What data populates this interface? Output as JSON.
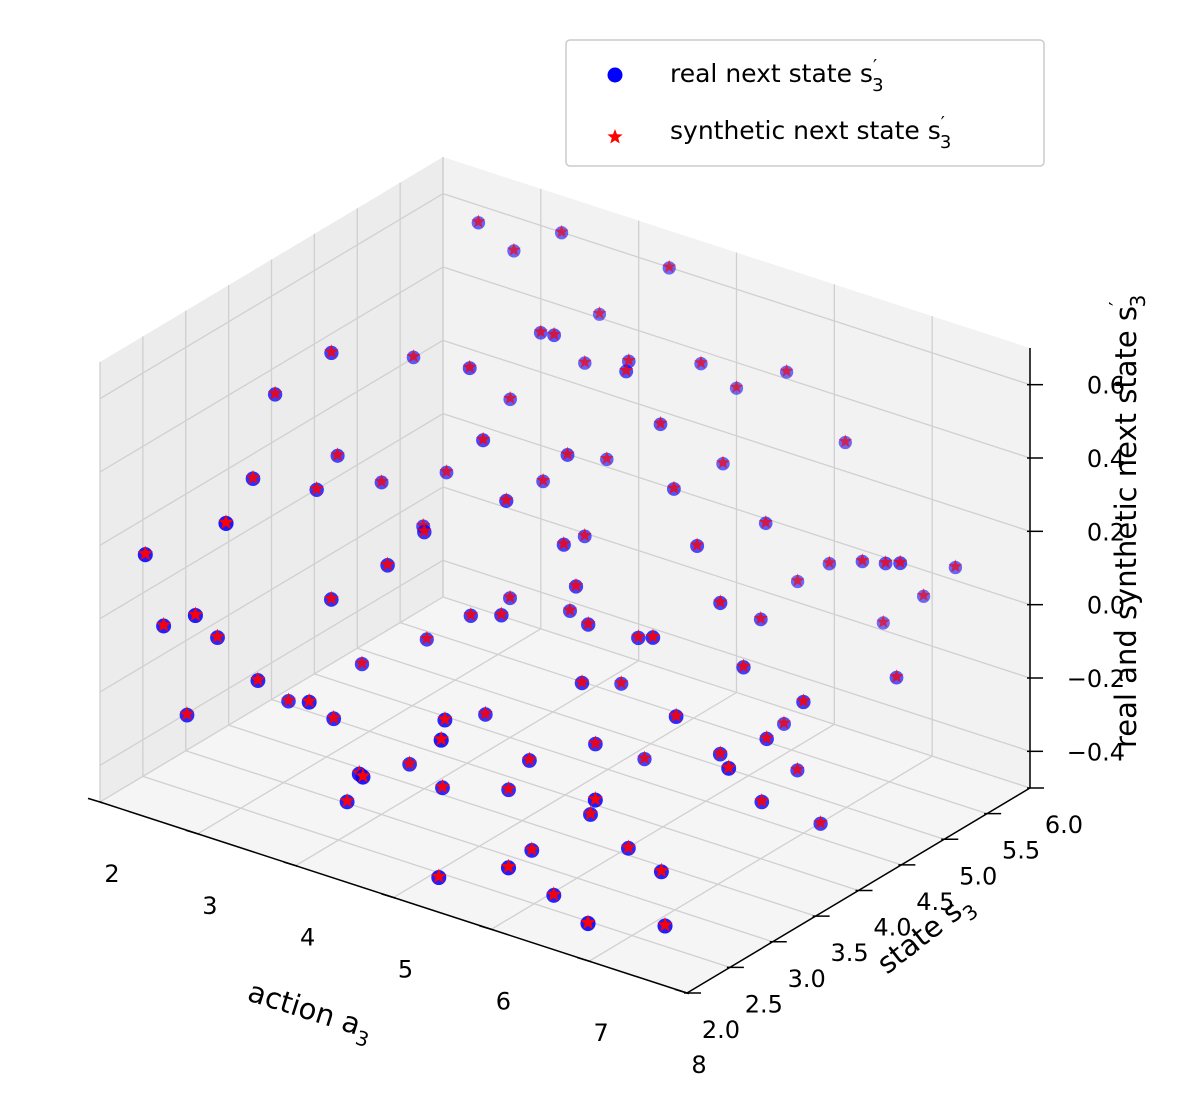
{
  "chart_data": {
    "type": "scatter",
    "projection": "3d",
    "grid": true,
    "legend_position": "top-right",
    "xlabel": "action a",
    "xlabel_sub": "3",
    "ylabel": "state s",
    "ylabel_sub": "3",
    "zlabel": "real and synthetic next state s",
    "zlabel_sup": "′",
    "zlabel_sub": "3",
    "xlim": [
      2,
      8
    ],
    "ylim": [
      2,
      6
    ],
    "zlim": [
      -0.5,
      0.7
    ],
    "x_ticks": [
      "2",
      "3",
      "4",
      "5",
      "6",
      "7",
      "8"
    ],
    "y_ticks": [
      "2.0",
      "2.5",
      "3.0",
      "3.5",
      "4.0",
      "4.5",
      "5.0",
      "5.5",
      "6.0"
    ],
    "z_ticks": [
      "−0.4",
      "−0.2",
      "0.0",
      "0.2",
      "0.4",
      "0.6"
    ],
    "series": [
      {
        "name": "real next state s",
        "name_sup": "′",
        "name_sub": "3",
        "marker": "circle",
        "color": "#0000ff"
      },
      {
        "name": "synthetic next state s",
        "name_sup": "′",
        "name_sub": "3",
        "marker": "star",
        "color": "#ff0000"
      }
    ],
    "points": [
      [
        2.3,
        2.4,
        -0.05
      ],
      [
        2.5,
        2.8,
        -0.12
      ],
      [
        2.2,
        2.3,
        0.15
      ],
      [
        3.0,
        2.7,
        -0.18
      ],
      [
        2.8,
        2.2,
        0.05
      ],
      [
        3.4,
        3.1,
        0.02
      ],
      [
        2.9,
        3.5,
        0.22
      ],
      [
        3.6,
        2.9,
        -0.26
      ],
      [
        4.0,
        2.6,
        -0.41
      ],
      [
        3.2,
        2.1,
        0.35
      ],
      [
        2.7,
        3.9,
        0.52
      ],
      [
        3.8,
        3.3,
        0.12
      ],
      [
        4.3,
        2.4,
        -0.28
      ],
      [
        4.8,
        2.8,
        -0.33
      ],
      [
        5.2,
        2.3,
        -0.47
      ],
      [
        5.6,
        2.9,
        -0.2
      ],
      [
        6.0,
        2.2,
        -0.36
      ],
      [
        6.4,
        2.7,
        -0.25
      ],
      [
        6.8,
        2.3,
        -0.12
      ],
      [
        7.3,
        2.5,
        -0.3
      ],
      [
        7.6,
        2.2,
        -0.38
      ],
      [
        7.1,
        2.9,
        0.05
      ],
      [
        6.6,
        3.2,
        0.18
      ],
      [
        6.1,
        3.6,
        0.08
      ],
      [
        5.7,
        3.4,
        -0.05
      ],
      [
        5.2,
        3.9,
        0.1
      ],
      [
        4.7,
        3.6,
        0.02
      ],
      [
        4.4,
        4.0,
        0.25
      ],
      [
        3.9,
        4.3,
        0.33
      ],
      [
        3.5,
        4.6,
        0.45
      ],
      [
        4.1,
        4.9,
        0.55
      ],
      [
        4.6,
        5.2,
        0.48
      ],
      [
        5.1,
        5.0,
        0.38
      ],
      [
        5.5,
        4.7,
        0.28
      ],
      [
        6.0,
        4.4,
        0.21
      ],
      [
        6.5,
        4.1,
        0.14
      ],
      [
        7.0,
        3.8,
        0.05
      ],
      [
        7.5,
        3.5,
        -0.06
      ],
      [
        7.8,
        3.1,
        -0.15
      ],
      [
        7.9,
        4.6,
        0.3
      ],
      [
        7.4,
        5.0,
        0.2
      ],
      [
        6.9,
        5.3,
        0.12
      ],
      [
        6.3,
        5.6,
        0.02
      ],
      [
        5.8,
        5.8,
        -0.1
      ],
      [
        5.3,
        5.5,
        0.22
      ],
      [
        4.9,
        5.7,
        0.43
      ],
      [
        4.4,
        5.9,
        0.62
      ],
      [
        3.8,
        5.6,
        0.35
      ],
      [
        3.3,
        5.3,
        0.25
      ],
      [
        3.0,
        4.9,
        0.08
      ],
      [
        2.6,
        4.6,
        0.06
      ],
      [
        2.4,
        5.2,
        0.3
      ],
      [
        2.9,
        5.8,
        0.55
      ],
      [
        3.6,
        6.0,
        0.41
      ],
      [
        4.2,
        5.4,
        0.15
      ],
      [
        4.7,
        4.4,
        -0.08
      ],
      [
        5.4,
        4.2,
        -0.19
      ],
      [
        5.9,
        3.9,
        -0.31
      ],
      [
        6.3,
        4.8,
        -0.02
      ],
      [
        6.8,
        4.5,
        -0.22
      ],
      [
        7.2,
        4.2,
        -0.27
      ],
      [
        7.7,
        3.9,
        -0.33
      ],
      [
        7.5,
        5.7,
        0.1
      ],
      [
        7.0,
        5.9,
        -0.05
      ],
      [
        6.5,
        6.0,
        -0.18
      ],
      [
        6.0,
        5.2,
        0.16
      ],
      [
        5.6,
        5.9,
        0.44
      ],
      [
        5.0,
        6.0,
        0.33
      ],
      [
        4.5,
        4.8,
        0.05
      ],
      [
        4.0,
        4.5,
        -0.12
      ],
      [
        3.5,
        4.1,
        -0.22
      ],
      [
        3.1,
        3.8,
        -0.28
      ],
      [
        2.7,
        3.4,
        -0.36
      ],
      [
        2.3,
        3.7,
        0.4
      ],
      [
        2.5,
        4.2,
        0.18
      ],
      [
        2.8,
        5.5,
        0.66
      ],
      [
        3.3,
        5.9,
        0.62
      ],
      [
        3.9,
        5.0,
        0.12
      ],
      [
        4.3,
        3.7,
        -0.03
      ],
      [
        4.8,
        3.3,
        -0.2
      ],
      [
        5.3,
        3.0,
        -0.32
      ],
      [
        5.8,
        2.7,
        -0.4
      ],
      [
        6.2,
        2.5,
        -0.46
      ],
      [
        6.7,
        2.8,
        -0.33
      ],
      [
        7.2,
        3.3,
        -0.1
      ],
      [
        7.7,
        3.7,
        0.03
      ],
      [
        6.1,
        3.1,
        -0.14
      ],
      [
        5.5,
        3.7,
        0.05
      ],
      [
        4.9,
        4.1,
        0.16
      ],
      [
        4.5,
        4.6,
        0.3
      ],
      [
        3.7,
        5.2,
        0.48
      ],
      [
        3.2,
        4.4,
        0.02
      ],
      [
        2.6,
        3.1,
        0.28
      ],
      [
        2.1,
        2.9,
        -0.38
      ],
      [
        3.7,
        2.5,
        -0.15
      ],
      [
        4.2,
        3.1,
        -0.36
      ],
      [
        4.6,
        2.1,
        -0.22
      ],
      [
        5.0,
        2.6,
        -0.1
      ],
      [
        5.4,
        2.1,
        -0.05
      ],
      [
        6.9,
        2.1,
        -0.42
      ],
      [
        7.9,
        2.6,
        0.02
      ],
      [
        7.6,
        4.9,
        -0.08
      ],
      [
        6.2,
        5.9,
        0.3
      ],
      [
        5.1,
        4.6,
        0.58
      ],
      [
        4.0,
        3.5,
        0.2
      ]
    ]
  }
}
